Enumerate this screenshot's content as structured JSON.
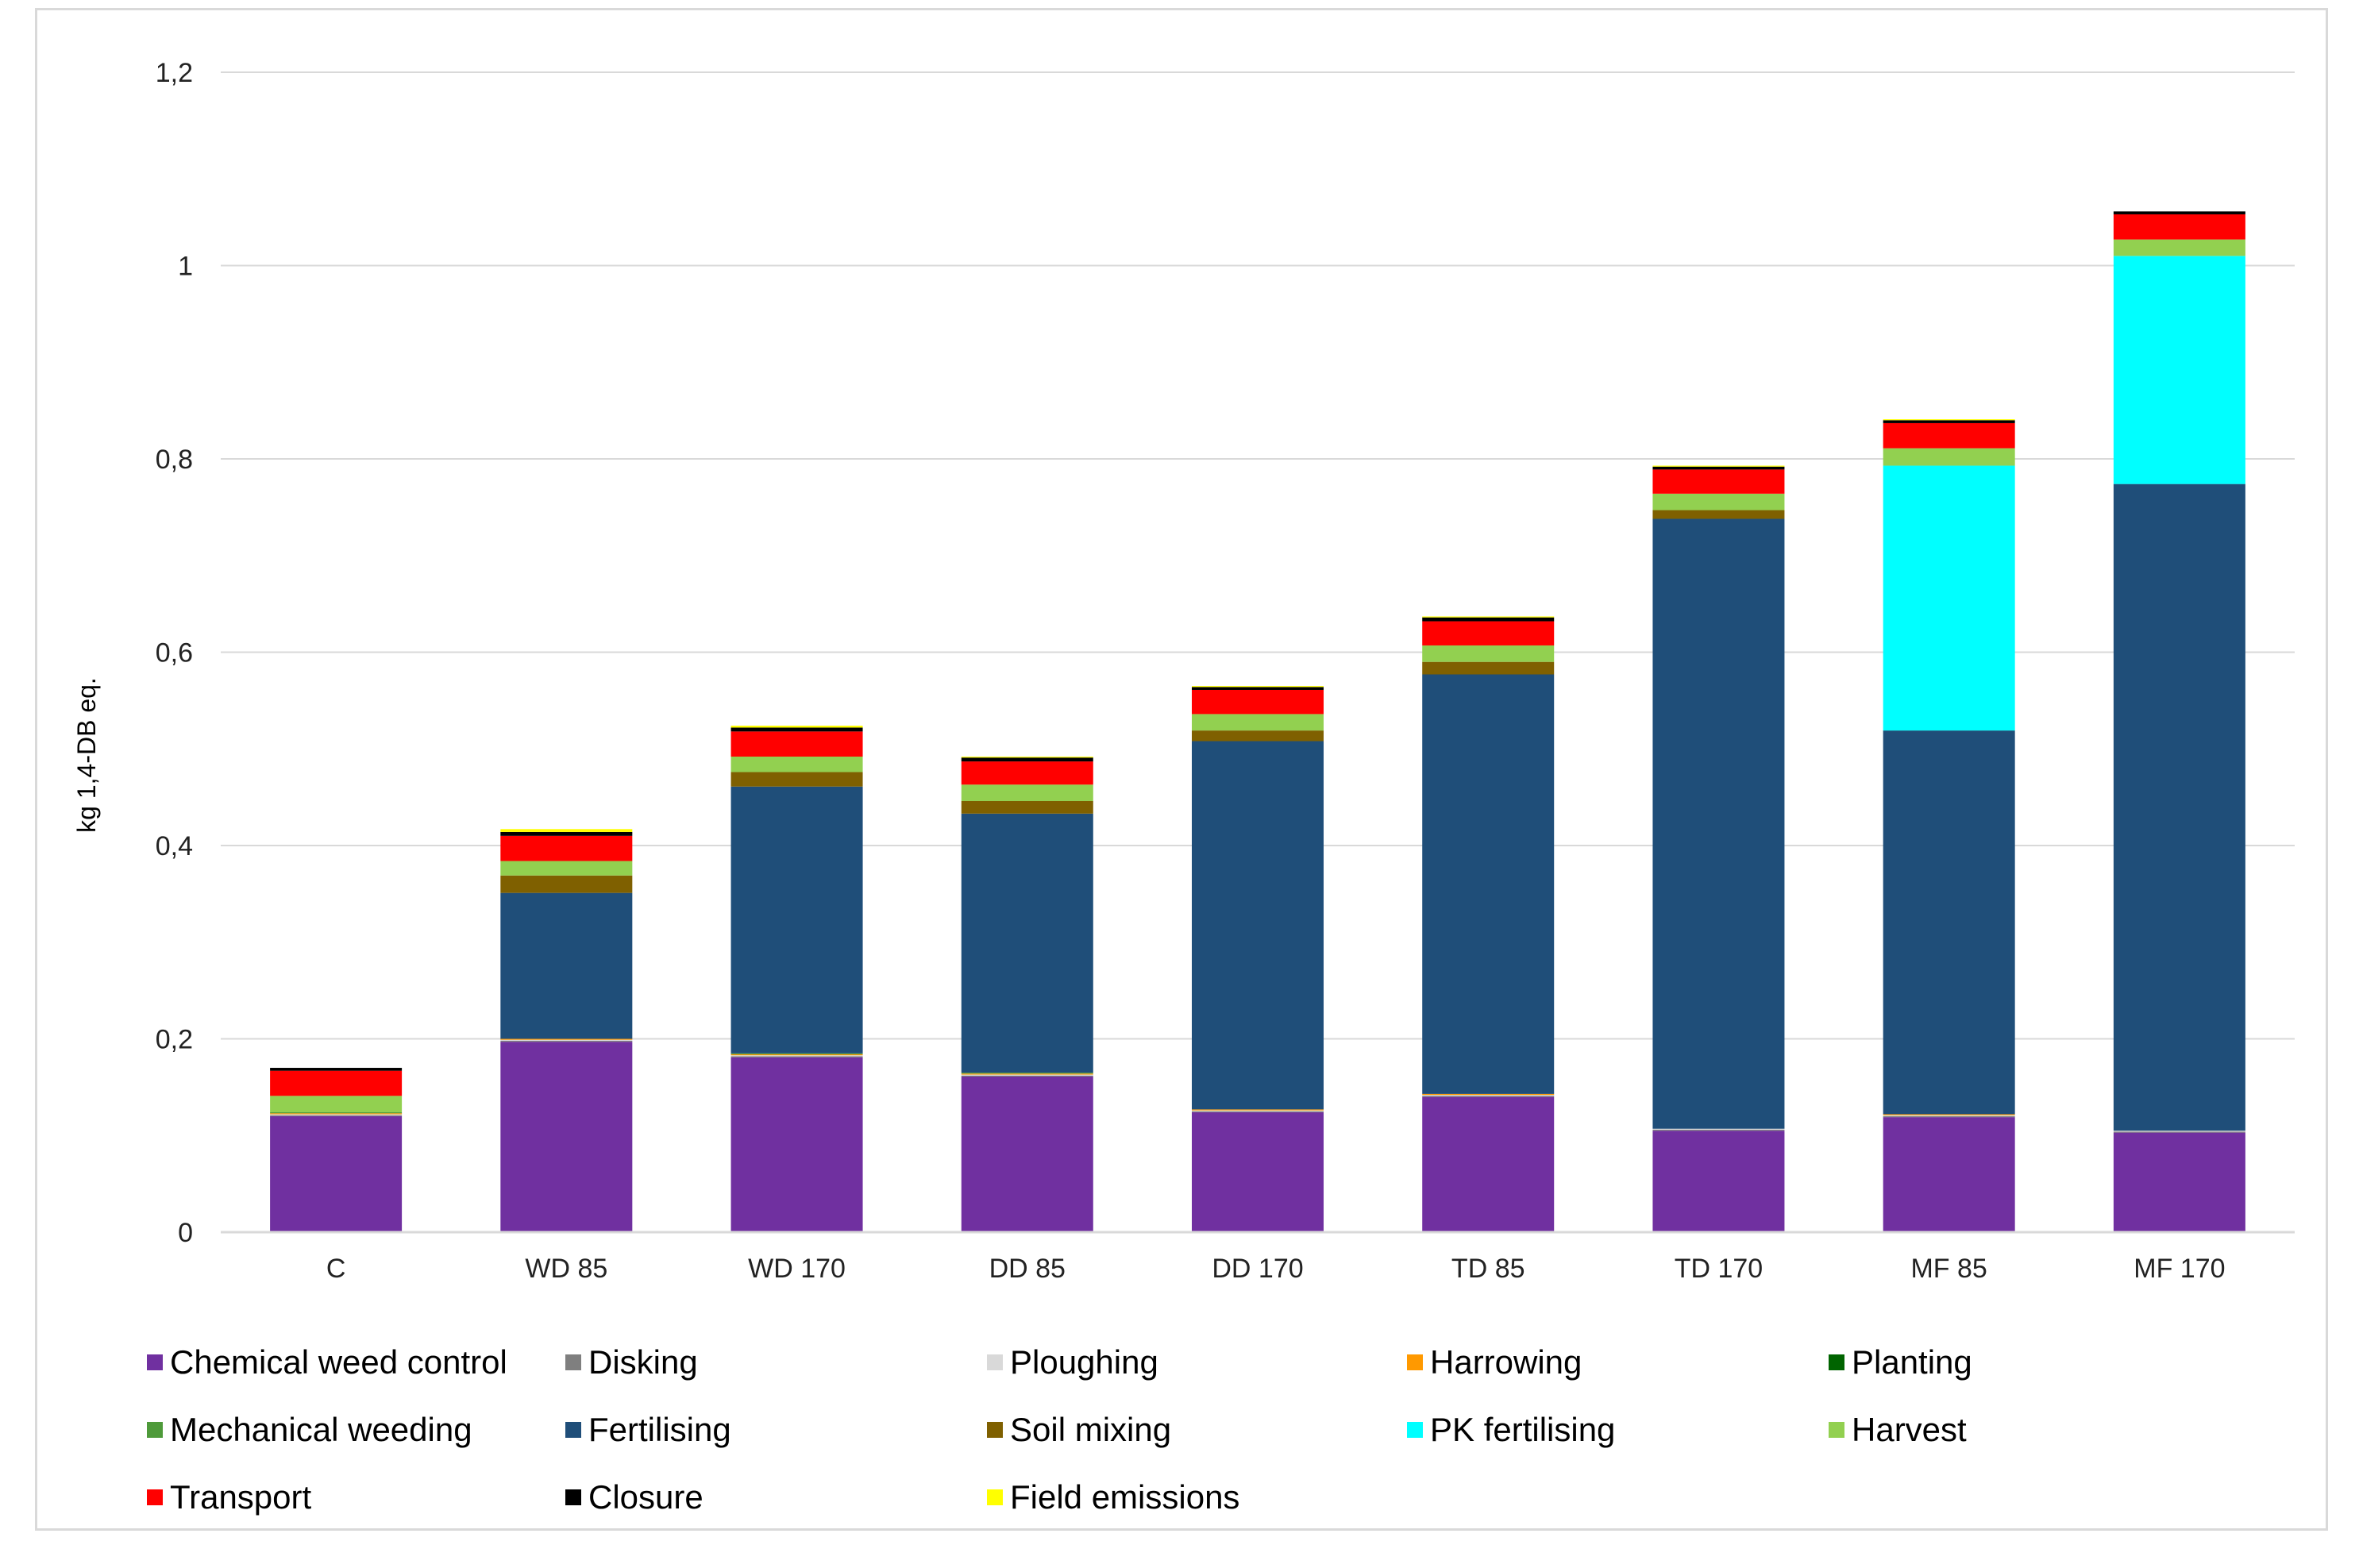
{
  "chart_data": {
    "type": "bar",
    "stacked": true,
    "title": "",
    "xlabel": "",
    "ylabel": "kg 1,4-DB eq.",
    "ylim": [
      0,
      1.2
    ],
    "yticks": [
      0,
      0.2,
      0.4,
      0.6,
      0.8,
      1,
      1.2
    ],
    "ytick_labels": [
      "0",
      "0,2",
      "0,4",
      "0,6",
      "0,8",
      "1",
      "1,2"
    ],
    "grid": true,
    "legend_position": "bottom",
    "categories": [
      "C",
      "WD 85",
      "WD 170",
      "DD 85",
      "DD 170",
      "TD 85",
      "TD 170",
      "MF 85",
      "MF 170"
    ],
    "series": [
      {
        "name": "Chemical weed control",
        "color": "#7030a0",
        "values": [
          0.12,
          0.197,
          0.181,
          0.161,
          0.124,
          0.14,
          0.105,
          0.119,
          0.103
        ]
      },
      {
        "name": "Disking",
        "color": "#7f7f7f",
        "values": [
          0.001,
          0.001,
          0.001,
          0.001,
          0.001,
          0.001,
          0.001,
          0.001,
          0.001
        ]
      },
      {
        "name": "Ploughing",
        "color": "#d9d9d9",
        "values": [
          0.001,
          0.001,
          0.001,
          0.001,
          0.001,
          0.001,
          0.001,
          0.001,
          0.001
        ]
      },
      {
        "name": "Harrowing",
        "color": "#ff9900",
        "values": [
          0.001,
          0.001,
          0.001,
          0.001,
          0.001,
          0.001,
          0.0,
          0.001,
          0.0
        ]
      },
      {
        "name": "Planting",
        "color": "#006400",
        "values": [
          0.0,
          0.0,
          0.0,
          0.0,
          0.0,
          0.0,
          0.0,
          0.0,
          0.0
        ]
      },
      {
        "name": "Mechanical weeding",
        "color": "#4e9a3a",
        "values": [
          0.001,
          0.0,
          0.001,
          0.001,
          0.0,
          0.0,
          0.0,
          0.0,
          0.0
        ]
      },
      {
        "name": "Fertilising",
        "color": "#1f4e79",
        "values": [
          0.0,
          0.151,
          0.276,
          0.268,
          0.381,
          0.434,
          0.631,
          0.397,
          0.669
        ]
      },
      {
        "name": "Soil mixing",
        "color": "#7f6000",
        "values": [
          0.0,
          0.018,
          0.015,
          0.013,
          0.011,
          0.013,
          0.009,
          0.0,
          0.0
        ]
      },
      {
        "name": "PK fertilising",
        "color": "#00ffff",
        "values": [
          0.0,
          0.0,
          0.0,
          0.0,
          0.0,
          0.0,
          0.0,
          0.274,
          0.236
        ]
      },
      {
        "name": "Harvest",
        "color": "#92d050",
        "values": [
          0.017,
          0.015,
          0.016,
          0.017,
          0.017,
          0.017,
          0.017,
          0.018,
          0.017
        ]
      },
      {
        "name": "Transport",
        "color": "#ff0000",
        "values": [
          0.026,
          0.026,
          0.026,
          0.024,
          0.025,
          0.025,
          0.025,
          0.026,
          0.026
        ]
      },
      {
        "name": "Closure",
        "color": "#000000",
        "values": [
          0.003,
          0.004,
          0.004,
          0.004,
          0.003,
          0.004,
          0.003,
          0.003,
          0.003
        ]
      },
      {
        "name": "Field emissions",
        "color": "#ffff00",
        "values": [
          0.0,
          0.003,
          0.002,
          0.001,
          0.001,
          0.001,
          0.001,
          0.001,
          0.0
        ]
      }
    ]
  }
}
